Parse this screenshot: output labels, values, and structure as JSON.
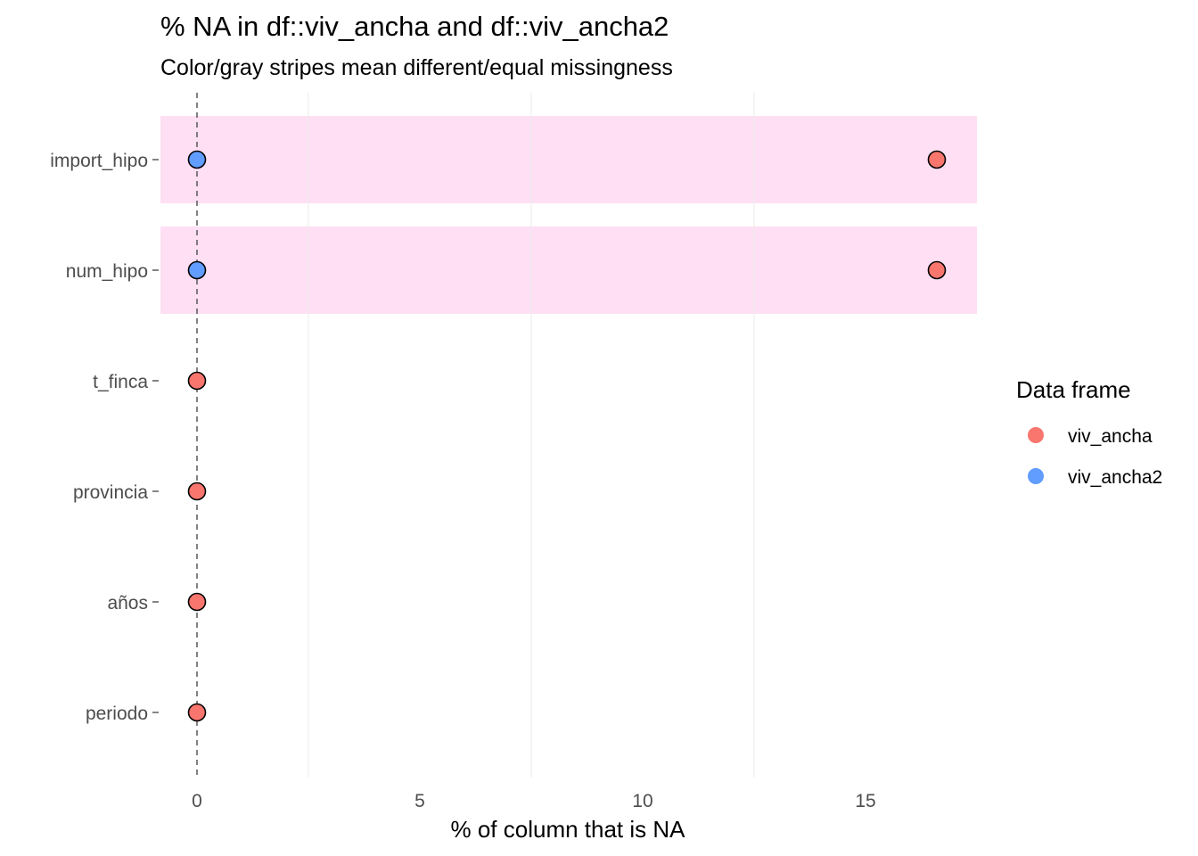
{
  "chart_data": {
    "type": "scatter",
    "title": "% NA in df::viv_ancha and df::viv_ancha2",
    "subtitle": "Color/gray stripes mean different/equal missingness",
    "xlabel": "% of column that is NA",
    "ylabel": "",
    "xlim": [
      -0.8,
      17.5
    ],
    "x_ticks": [
      0,
      5,
      10,
      15
    ],
    "x_tick_labels": [
      "0",
      "5",
      "10",
      "15"
    ],
    "categories": [
      "import_hipo",
      "num_hipo",
      "t_finca",
      "provincia",
      "años",
      "periodo"
    ],
    "stripes": [
      {
        "category": "import_hipo",
        "color": "#ffdff3"
      },
      {
        "category": "num_hipo",
        "color": "#ffdff3"
      }
    ],
    "reference_line": {
      "x": 0,
      "style": "dashed"
    },
    "grid": "vertical-minor",
    "series": [
      {
        "name": "viv_ancha",
        "color": "#f8766d",
        "values": [
          16.6,
          16.6,
          0,
          0,
          0,
          0
        ]
      },
      {
        "name": "viv_ancha2",
        "color": "#619cff",
        "values": [
          0,
          0,
          null,
          null,
          null,
          null
        ]
      }
    ],
    "legend": {
      "title": "Data frame",
      "placement": "right",
      "entries": [
        {
          "label": "viv_ancha",
          "color": "#f8766d"
        },
        {
          "label": "viv_ancha2",
          "color": "#619cff"
        }
      ]
    }
  }
}
